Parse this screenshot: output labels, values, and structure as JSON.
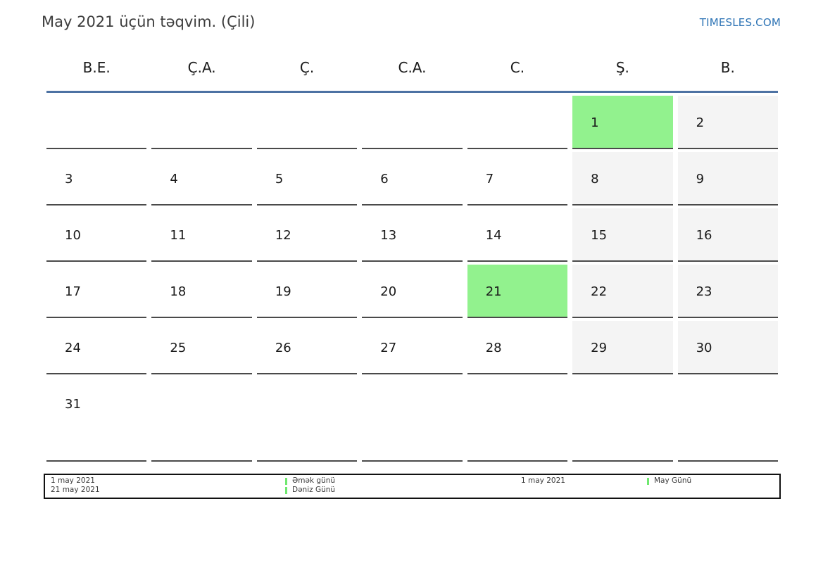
{
  "page": {
    "title": "May 2021 üçün təqvim. (Çili)",
    "brand": "TIMESLES.COM"
  },
  "colors": {
    "holiday_green": "#92f28e",
    "weekend_gray": "#f4f4f4",
    "header_rule_blue": "#4d72a3",
    "brand_blue": "#2e74b5",
    "cell_border": "#4a4a4a",
    "legend_swatch_green": "#6fe86f"
  },
  "weekdays": [
    "B.E.",
    "Ç.A.",
    "Ç.",
    "C.A.",
    "C.",
    "Ş.",
    "B."
  ],
  "calendar": {
    "month": "May 2021",
    "weeks": [
      {
        "days": [
          "",
          "",
          "",
          "",
          "",
          "1",
          "2"
        ]
      },
      {
        "days": [
          "3",
          "4",
          "5",
          "6",
          "7",
          "8",
          "9"
        ]
      },
      {
        "days": [
          "10",
          "11",
          "12",
          "13",
          "14",
          "15",
          "16"
        ]
      },
      {
        "days": [
          "17",
          "18",
          "19",
          "20",
          "21",
          "22",
          "23"
        ]
      },
      {
        "days": [
          "24",
          "25",
          "26",
          "27",
          "28",
          "29",
          "30"
        ]
      },
      {
        "days": [
          "31",
          "",
          "",
          "",
          "",
          "",
          ""
        ]
      }
    ],
    "highlighted_days": [
      "1",
      "21"
    ],
    "weekend_days": [
      "1",
      "2",
      "8",
      "9",
      "15",
      "16",
      "22",
      "23",
      "29",
      "30"
    ]
  },
  "legend": {
    "local": {
      "dates": [
        "1 may 2021",
        "21 may 2021"
      ],
      "labels": [
        "Əmək günü",
        "Dəniz Günü"
      ]
    },
    "international": {
      "dates": [
        "1 may 2021"
      ],
      "labels": [
        "May Günü"
      ]
    }
  }
}
